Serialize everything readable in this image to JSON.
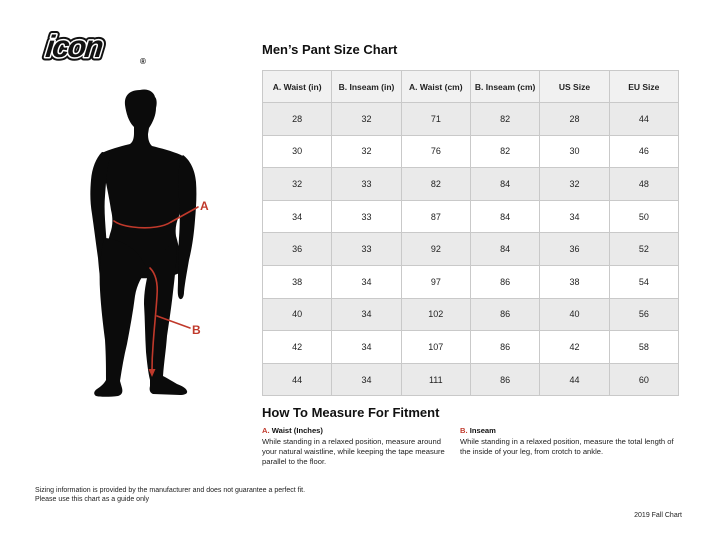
{
  "brand": {
    "logo_text": "icon",
    "registered_mark": "®"
  },
  "title": "Men’s Pant Size Chart",
  "figure": {
    "label_a": "A",
    "label_b": "B"
  },
  "table": {
    "headers": [
      "A. Waist (in)",
      "B. Inseam (in)",
      "A. Waist (cm)",
      "B. Inseam (cm)",
      "US Size",
      "EU Size"
    ],
    "rows": [
      [
        "28",
        "32",
        "71",
        "82",
        "28",
        "44"
      ],
      [
        "30",
        "32",
        "76",
        "82",
        "30",
        "46"
      ],
      [
        "32",
        "33",
        "82",
        "84",
        "32",
        "48"
      ],
      [
        "34",
        "33",
        "87",
        "84",
        "34",
        "50"
      ],
      [
        "36",
        "33",
        "92",
        "84",
        "36",
        "52"
      ],
      [
        "38",
        "34",
        "97",
        "86",
        "38",
        "54"
      ],
      [
        "40",
        "34",
        "102",
        "86",
        "40",
        "56"
      ],
      [
        "42",
        "34",
        "107",
        "86",
        "42",
        "58"
      ],
      [
        "44",
        "34",
        "111",
        "86",
        "44",
        "60"
      ]
    ]
  },
  "how_to": {
    "heading": "How To Measure For Fitment",
    "items": [
      {
        "label_prefix": "A.",
        "label": "Waist (Inches)",
        "text": "While standing in a relaxed position, measure around your natural waistline, while keeping the tape measure parallel to the floor."
      },
      {
        "label_prefix": "B.",
        "label": "Inseam",
        "text": "While standing in a relaxed position, measure the total length of the inside of your leg, from crotch to ankle."
      }
    ]
  },
  "footer": {
    "disclaimer_line1": "Sizing information is provided by the manufacturer and does not guarantee a perfect fit.",
    "disclaimer_line2": "Please use this chart as a guide only",
    "chart_version": "2019 Fall Chart"
  },
  "colors": {
    "accent_red": "#c0392b",
    "silhouette": "#0b0b0b",
    "table_header_bg": "#f1f1f1",
    "table_alt_row_bg": "#eaeaea",
    "table_border": "#c9c9c9"
  }
}
